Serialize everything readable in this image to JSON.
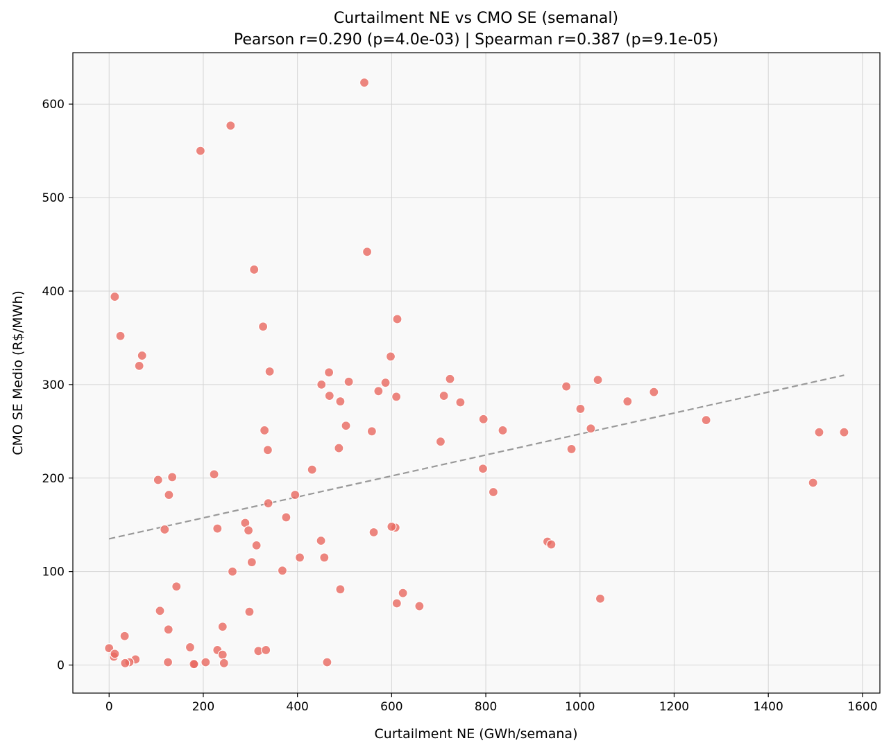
{
  "chart_data": {
    "type": "scatter",
    "title": "Curtailment NE vs CMO SE (semanal)",
    "subtitle": "Pearson r=0.290 (p=4.0e-03) | Spearman r=0.387 (p=9.1e-05)",
    "xlabel": "Curtailment NE (GWh/semana)",
    "ylabel": "CMO SE Medio (R$/MWh)",
    "xlim": [
      -77,
      1637
    ],
    "ylim": [
      -30,
      655
    ],
    "xticks": [
      0,
      200,
      400,
      600,
      800,
      1000,
      1200,
      1400,
      1600
    ],
    "yticks": [
      0,
      100,
      200,
      300,
      400,
      500,
      600
    ],
    "grid": true,
    "colors": {
      "points": "#e8685f",
      "trendline": "#999999",
      "plot_background": "#f9f9f9"
    },
    "trendline": {
      "x": [
        0,
        1561
      ],
      "y": [
        135,
        310
      ]
    },
    "series": [
      {
        "x": [
          542,
          258,
          194,
          548,
          308,
          12,
          612,
          327,
          24,
          70,
          64,
          598,
          341,
          467,
          587,
          451,
          509,
          724,
          572,
          610,
          468,
          711,
          491,
          746,
          971,
          1038,
          1157,
          1101,
          1001,
          1268,
          503,
          558,
          330,
          836,
          1023,
          1508,
          1561,
          1495,
          337,
          488,
          795,
          982,
          223,
          431,
          794,
          104,
          134,
          127,
          704,
          816,
          395,
          338,
          376,
          118,
          230,
          289,
          296,
          608,
          600,
          562,
          450,
          313,
          931,
          939,
          405,
          457,
          303,
          368,
          262,
          491,
          143,
          624,
          611,
          1043,
          659,
          108,
          298,
          241,
          126,
          33,
          0,
          10,
          12,
          172,
          230,
          317,
          333,
          241,
          56,
          205,
          43,
          34,
          125,
          182,
          180,
          244,
          463
        ],
        "y": [
          623,
          577,
          550,
          442,
          423,
          394,
          370,
          362,
          352,
          331,
          320,
          330,
          314,
          313,
          302,
          300,
          303,
          306,
          293,
          287,
          288,
          288,
          282,
          281,
          298,
          305,
          292,
          282,
          274,
          262,
          256,
          250,
          251,
          251,
          253,
          249,
          249,
          195,
          230,
          232,
          263,
          231,
          204,
          209,
          210,
          198,
          201,
          182,
          239,
          185,
          182,
          173,
          158,
          145,
          146,
          152,
          144,
          147,
          148,
          142,
          133,
          128,
          132,
          129,
          115,
          115,
          110,
          101,
          100,
          81,
          84,
          77,
          66,
          71,
          63,
          58,
          57,
          41,
          38,
          31,
          18,
          9,
          12,
          19,
          16,
          15,
          16,
          11,
          6,
          3,
          3,
          2,
          3,
          1,
          1,
          2,
          3
        ]
      }
    ]
  }
}
